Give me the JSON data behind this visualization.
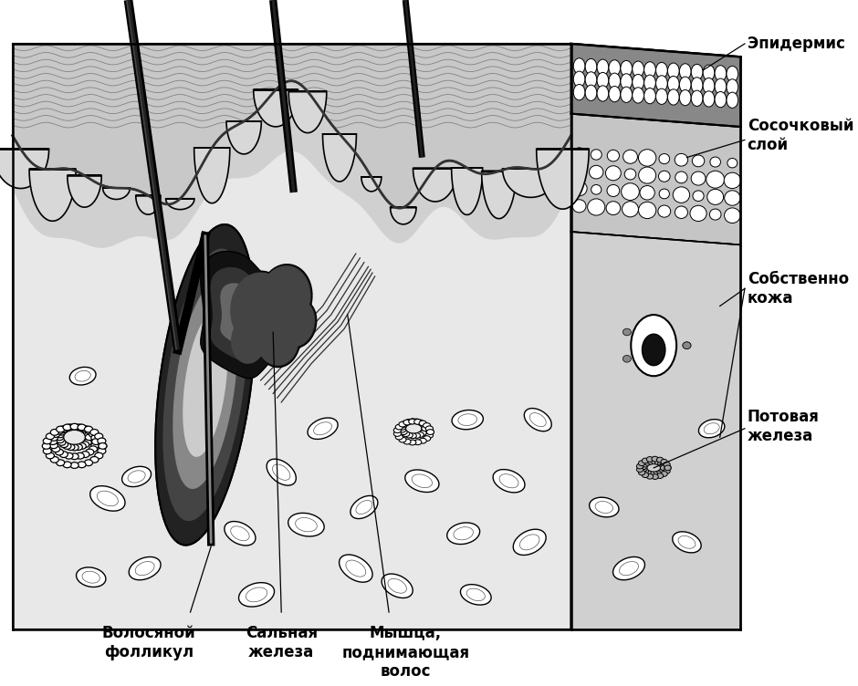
{
  "labels": {
    "epidermis": "Эпидермис",
    "papillary_layer": "Сосочковый\nслой",
    "dermis": "Собственно\nкожа",
    "sweat_gland": "Потовая\nжелеза",
    "hair_follicle": "Волосяной\nфолликул",
    "sebaceous_gland": "Сальная\nжелеза",
    "muscle": "Мышца,\nподнимающая\nволос"
  },
  "colors": {
    "bg": "#ffffff",
    "dermis_bg": "#e0e0e0",
    "epidermis_dark": "#888888",
    "epidermis_top": "#aaaaaa",
    "right_face_dermis": "#c8c8c8",
    "right_face_epidermis": "#777777",
    "papillary_gray": "#c0c0c0",
    "follicle_dark": "#111111",
    "follicle_mid": "#555555",
    "sebaceous_dark": "#333333",
    "line": "#000000"
  }
}
